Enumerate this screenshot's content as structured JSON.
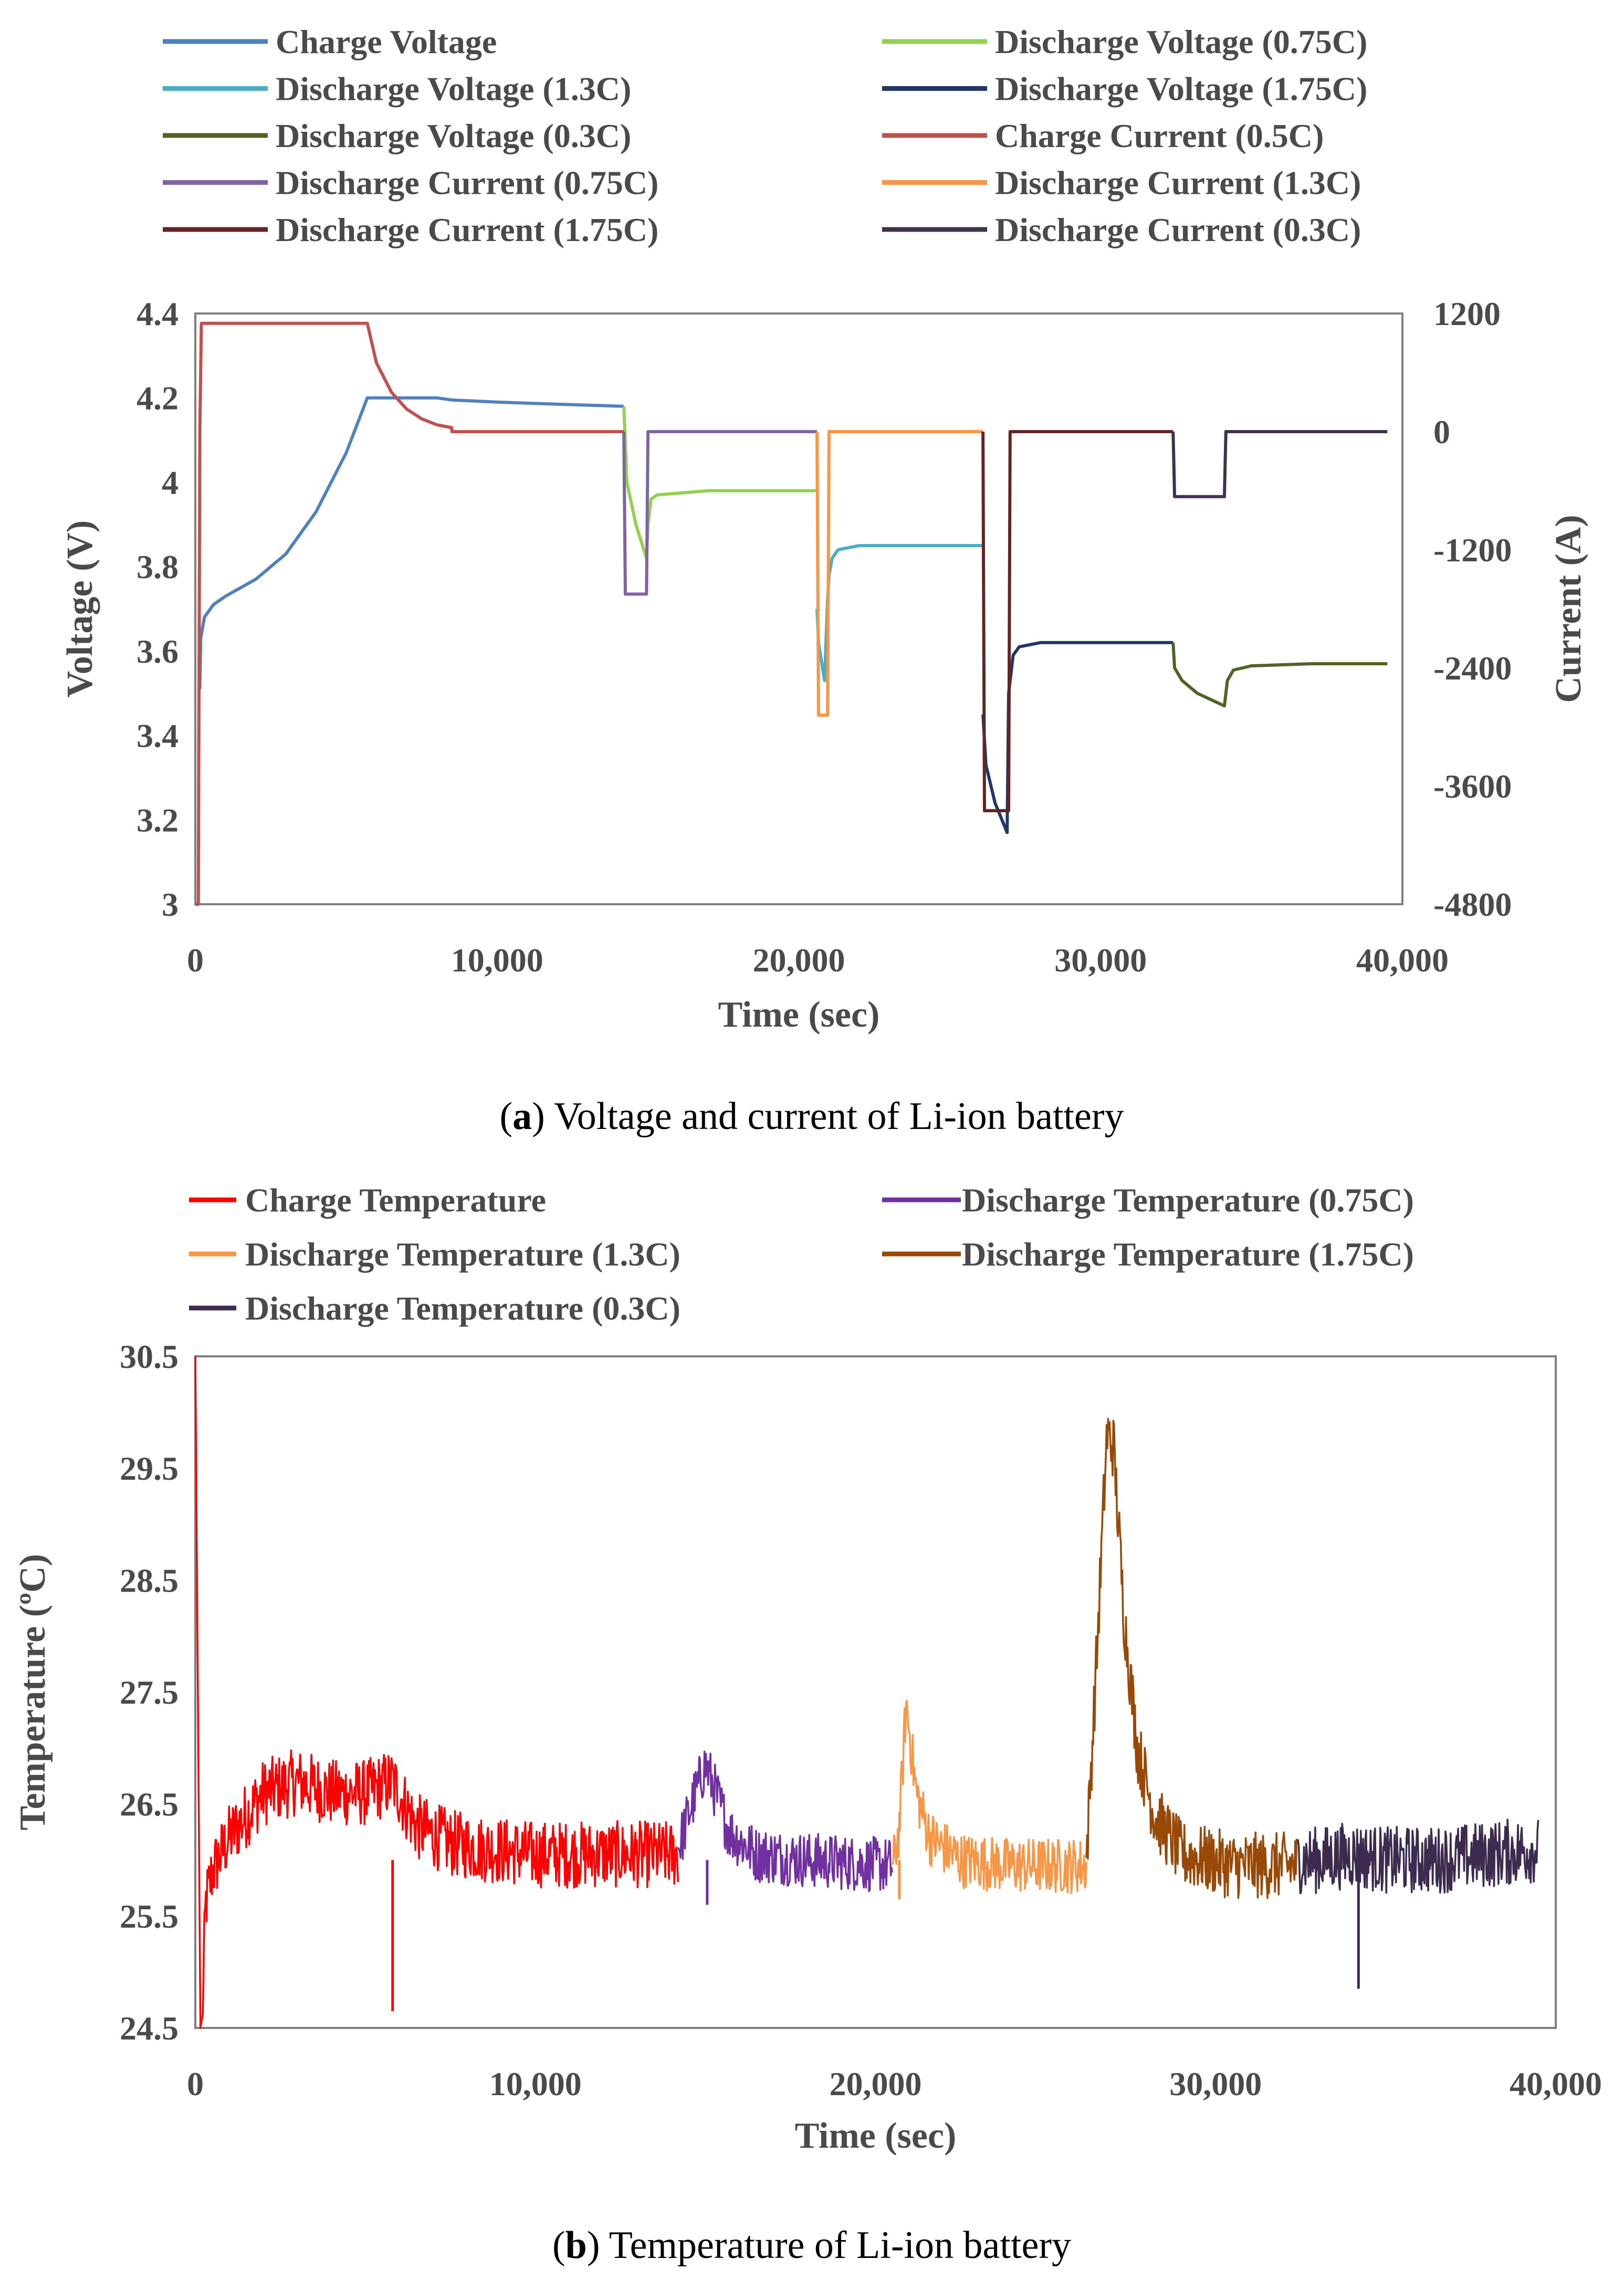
{
  "colors": {
    "charge_voltage": "#4F81BD",
    "discharge_voltage_075": "#92D050",
    "discharge_voltage_13": "#4BACC6",
    "discharge_voltage_175": "#1F3864",
    "discharge_voltage_03": "#4F6228",
    "charge_current": "#C0504D",
    "discharge_current_075": "#8064A2",
    "discharge_current_13": "#F79646",
    "discharge_current_175": "#632523",
    "discharge_current_03": "#403151",
    "charge_temp": "#FF0000",
    "discharge_temp_075": "#7030A0",
    "discharge_temp_13": "#F79646",
    "discharge_temp_175": "#984807",
    "discharge_temp_03": "#3D2B4F",
    "axis": "#7f7f7f",
    "text": "#4a4a4a"
  },
  "chart_data": [
    {
      "id": "a",
      "type": "line",
      "caption_label": "a",
      "caption_text": ") Voltage and current of Li-ion battery",
      "caption_open": "(",
      "xlabel": "Time (sec)",
      "ylabel": "Voltage (V)",
      "y2label": "Current (A)",
      "xlim": [
        0,
        40000
      ],
      "ylim": [
        3,
        4.4
      ],
      "y2lim": [
        -4800,
        1200
      ],
      "xticks": [
        "0",
        "10,000",
        "20,000",
        "30,000",
        "40,000"
      ],
      "yticks": [
        "3",
        "3.2",
        "3.4",
        "3.6",
        "3.8",
        "4",
        "4.2",
        "4.4"
      ],
      "y2ticks": [
        "-4800",
        "-3600",
        "-2400",
        "-1200",
        "0",
        "1200"
      ],
      "legend": [
        "Charge Voltage",
        "Discharge Voltage (0.75C)",
        "Discharge Voltage (1.3C)",
        "Discharge Voltage (1.75C)",
        "Discharge Voltage (0.3C)",
        "Charge Current (0.5C)",
        "Discharge Current (0.75C)",
        "Discharge Current (1.3C)",
        "Discharge Current (1.75C)",
        "Discharge Current (0.3C)"
      ],
      "series": [
        {
          "name": "Charge Voltage",
          "axis": "left",
          "color_key": "charge_voltage",
          "x": [
            150,
            180,
            300,
            600,
            1000,
            2000,
            3000,
            4000,
            5000,
            5700,
            6000,
            8000,
            8500,
            10000,
            12000,
            14200
          ],
          "y": [
            3.51,
            3.63,
            3.68,
            3.71,
            3.73,
            3.77,
            3.83,
            3.93,
            4.07,
            4.2,
            4.2,
            4.2,
            4.195,
            4.19,
            4.185,
            4.18
          ]
        },
        {
          "name": "Discharge Voltage (0.75C)",
          "axis": "left",
          "color_key": "discharge_voltage_075",
          "x": [
            14200,
            14300,
            14600,
            14950,
            15000,
            15100,
            15300,
            17000,
            20600
          ],
          "y": [
            4.18,
            4.0,
            3.9,
            3.82,
            3.9,
            3.96,
            3.97,
            3.98,
            3.98
          ]
        },
        {
          "name": "Discharge Voltage (1.3C)",
          "axis": "left",
          "color_key": "discharge_voltage_13",
          "x": [
            20600,
            20650,
            20850,
            20950,
            21000,
            21100,
            21300,
            22000,
            26100
          ],
          "y": [
            3.7,
            3.62,
            3.53,
            3.72,
            3.78,
            3.82,
            3.84,
            3.85,
            3.85
          ]
        },
        {
          "name": "Discharge Voltage (1.75C)",
          "axis": "left",
          "color_key": "discharge_voltage_175",
          "x": [
            26100,
            26200,
            26500,
            26900,
            26950,
            27100,
            27300,
            28000,
            32400
          ],
          "y": [
            3.45,
            3.33,
            3.24,
            3.17,
            3.5,
            3.59,
            3.61,
            3.62,
            3.62
          ]
        },
        {
          "name": "Discharge Voltage (0.3C)",
          "axis": "left",
          "color_key": "discharge_voltage_03",
          "x": [
            32400,
            32450,
            32700,
            33200,
            34100,
            34200,
            34400,
            35000,
            37000,
            39500
          ],
          "y": [
            3.62,
            3.56,
            3.53,
            3.5,
            3.47,
            3.53,
            3.555,
            3.565,
            3.57,
            3.57
          ]
        },
        {
          "name": "Charge Current (0.5C)",
          "axis": "right",
          "color_key": "charge_current",
          "x": [
            0,
            100,
            150,
            200,
            5700,
            6000,
            6500,
            7000,
            7500,
            8000,
            8500,
            8500,
            14200
          ],
          "y": [
            -4800,
            -4800,
            0,
            1100,
            1100,
            700,
            400,
            230,
            130,
            70,
            40,
            0,
            0
          ]
        },
        {
          "name": "Discharge Current (0.75C)",
          "axis": "right",
          "color_key": "discharge_current_075",
          "x": [
            14200,
            14250,
            14950,
            15000,
            20600
          ],
          "y": [
            0,
            -1650,
            -1650,
            0,
            0
          ]
        },
        {
          "name": "Discharge Current (1.3C)",
          "axis": "right",
          "color_key": "discharge_current_13",
          "x": [
            20600,
            20650,
            20950,
            21000,
            26100
          ],
          "y": [
            0,
            -2880,
            -2880,
            0,
            0
          ]
        },
        {
          "name": "Discharge Current (1.75C)",
          "axis": "right",
          "color_key": "discharge_current_175",
          "x": [
            26100,
            26150,
            26950,
            27000,
            32400
          ],
          "y": [
            0,
            -3850,
            -3850,
            0,
            0
          ]
        },
        {
          "name": "Discharge Current (0.3C)",
          "axis": "right",
          "color_key": "discharge_current_03",
          "x": [
            32400,
            32450,
            34100,
            34150,
            39500
          ],
          "y": [
            0,
            -660,
            -660,
            0,
            0
          ]
        }
      ]
    },
    {
      "id": "b",
      "type": "line",
      "caption_label": "b",
      "caption_text": ") Temperature of Li-ion battery",
      "caption_open": "(",
      "xlabel": "Time (sec)",
      "ylabel": "Temperature (ºC)",
      "xlim": [
        0,
        40000
      ],
      "ylim": [
        24.5,
        30.5
      ],
      "xticks": [
        "0",
        "10,000",
        "20,000",
        "30,000",
        "40,000"
      ],
      "yticks": [
        "24.5",
        "25.5",
        "26.5",
        "27.5",
        "28.5",
        "29.5",
        "30.5"
      ],
      "legend": [
        "Charge Temperature",
        "Discharge Temperature (0.75C)",
        "Discharge Temperature (1.3C)",
        "Discharge Temperature (1.75C)",
        "Discharge Temperature (0.3C)"
      ],
      "series": [
        {
          "name": "Charge Temperature",
          "color_key": "charge_temp",
          "x": [
            0,
            200,
            300,
            500,
            1000,
            2000,
            3000,
            4000,
            5000,
            5800,
            6500,
            7500,
            8500,
            10000,
            12000,
            14200
          ],
          "y": [
            30.5,
            24.5,
            25.6,
            25.9,
            26.2,
            26.6,
            26.7,
            26.6,
            26.6,
            26.7,
            26.3,
            26.15,
            26.1,
            26.05,
            26.05,
            26.05
          ],
          "amp": 0.3
        },
        {
          "name": "Discharge Temperature (0.75C)",
          "color_key": "discharge_temp_075",
          "x": [
            14200,
            14600,
            15000,
            15300,
            15700,
            16500,
            18000,
            20500
          ],
          "y": [
            26.1,
            26.5,
            26.85,
            26.6,
            26.25,
            26.05,
            26.0,
            25.95
          ],
          "amp": 0.25
        },
        {
          "name": "Discharge Temperature (1.3C)",
          "color_key": "discharge_temp_13",
          "x": [
            20500,
            20700,
            20900,
            21200,
            21600,
            22500,
            24000,
            26200
          ],
          "y": [
            25.9,
            26.3,
            27.4,
            26.6,
            26.2,
            26.0,
            25.95,
            25.95
          ],
          "amp": 0.25
        },
        {
          "name": "Discharge Temperature (1.75C)",
          "color_key": "discharge_temp_175",
          "x": [
            26200,
            26500,
            26800,
            27000,
            27300,
            27700,
            28200,
            29000,
            30500,
            32400
          ],
          "y": [
            26.0,
            27.8,
            29.8,
            29.7,
            28.2,
            27.0,
            26.4,
            26.05,
            25.95,
            25.95
          ],
          "amp": 0.3
        },
        {
          "name": "Discharge Temperature (0.3C)",
          "color_key": "discharge_temp_03",
          "x": [
            32400,
            33000,
            34000,
            35000,
            36500,
            38000,
            39500
          ],
          "y": [
            26.0,
            26.0,
            26.05,
            26.0,
            26.0,
            26.05,
            26.1
          ],
          "amp": 0.3
        }
      ]
    }
  ]
}
